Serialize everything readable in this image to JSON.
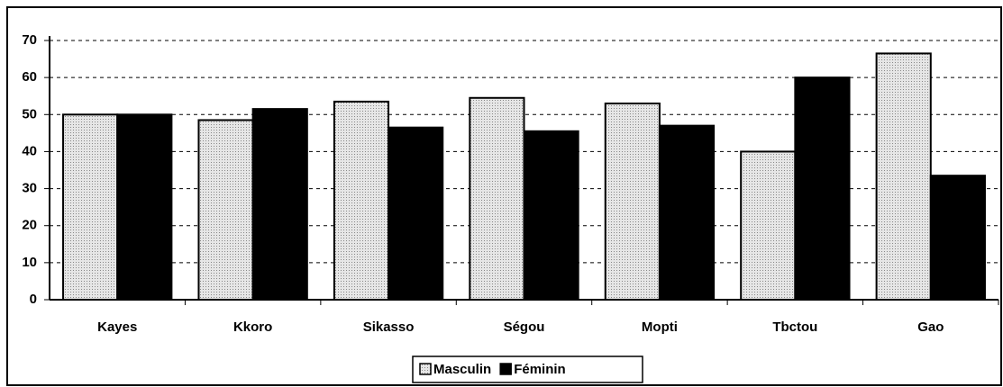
{
  "chart_data": {
    "type": "bar",
    "categories": [
      "Kayes",
      "Kkoro",
      "Sikasso",
      "Ségou",
      "Mopti",
      "Tbctou",
      "Gao"
    ],
    "series": [
      {
        "name": "Masculin",
        "color": "#d9d9d9",
        "values": [
          50,
          48.5,
          53.5,
          54.5,
          53,
          40,
          66.5
        ]
      },
      {
        "name": "Féminin",
        "color": "#000000",
        "values": [
          50,
          51.5,
          46.5,
          45.5,
          47,
          60,
          33.5
        ]
      }
    ],
    "ylim": [
      0,
      70
    ],
    "yticks": [
      0,
      10,
      20,
      30,
      40,
      50,
      60,
      70
    ],
    "grid": true,
    "legend": "bottom"
  }
}
